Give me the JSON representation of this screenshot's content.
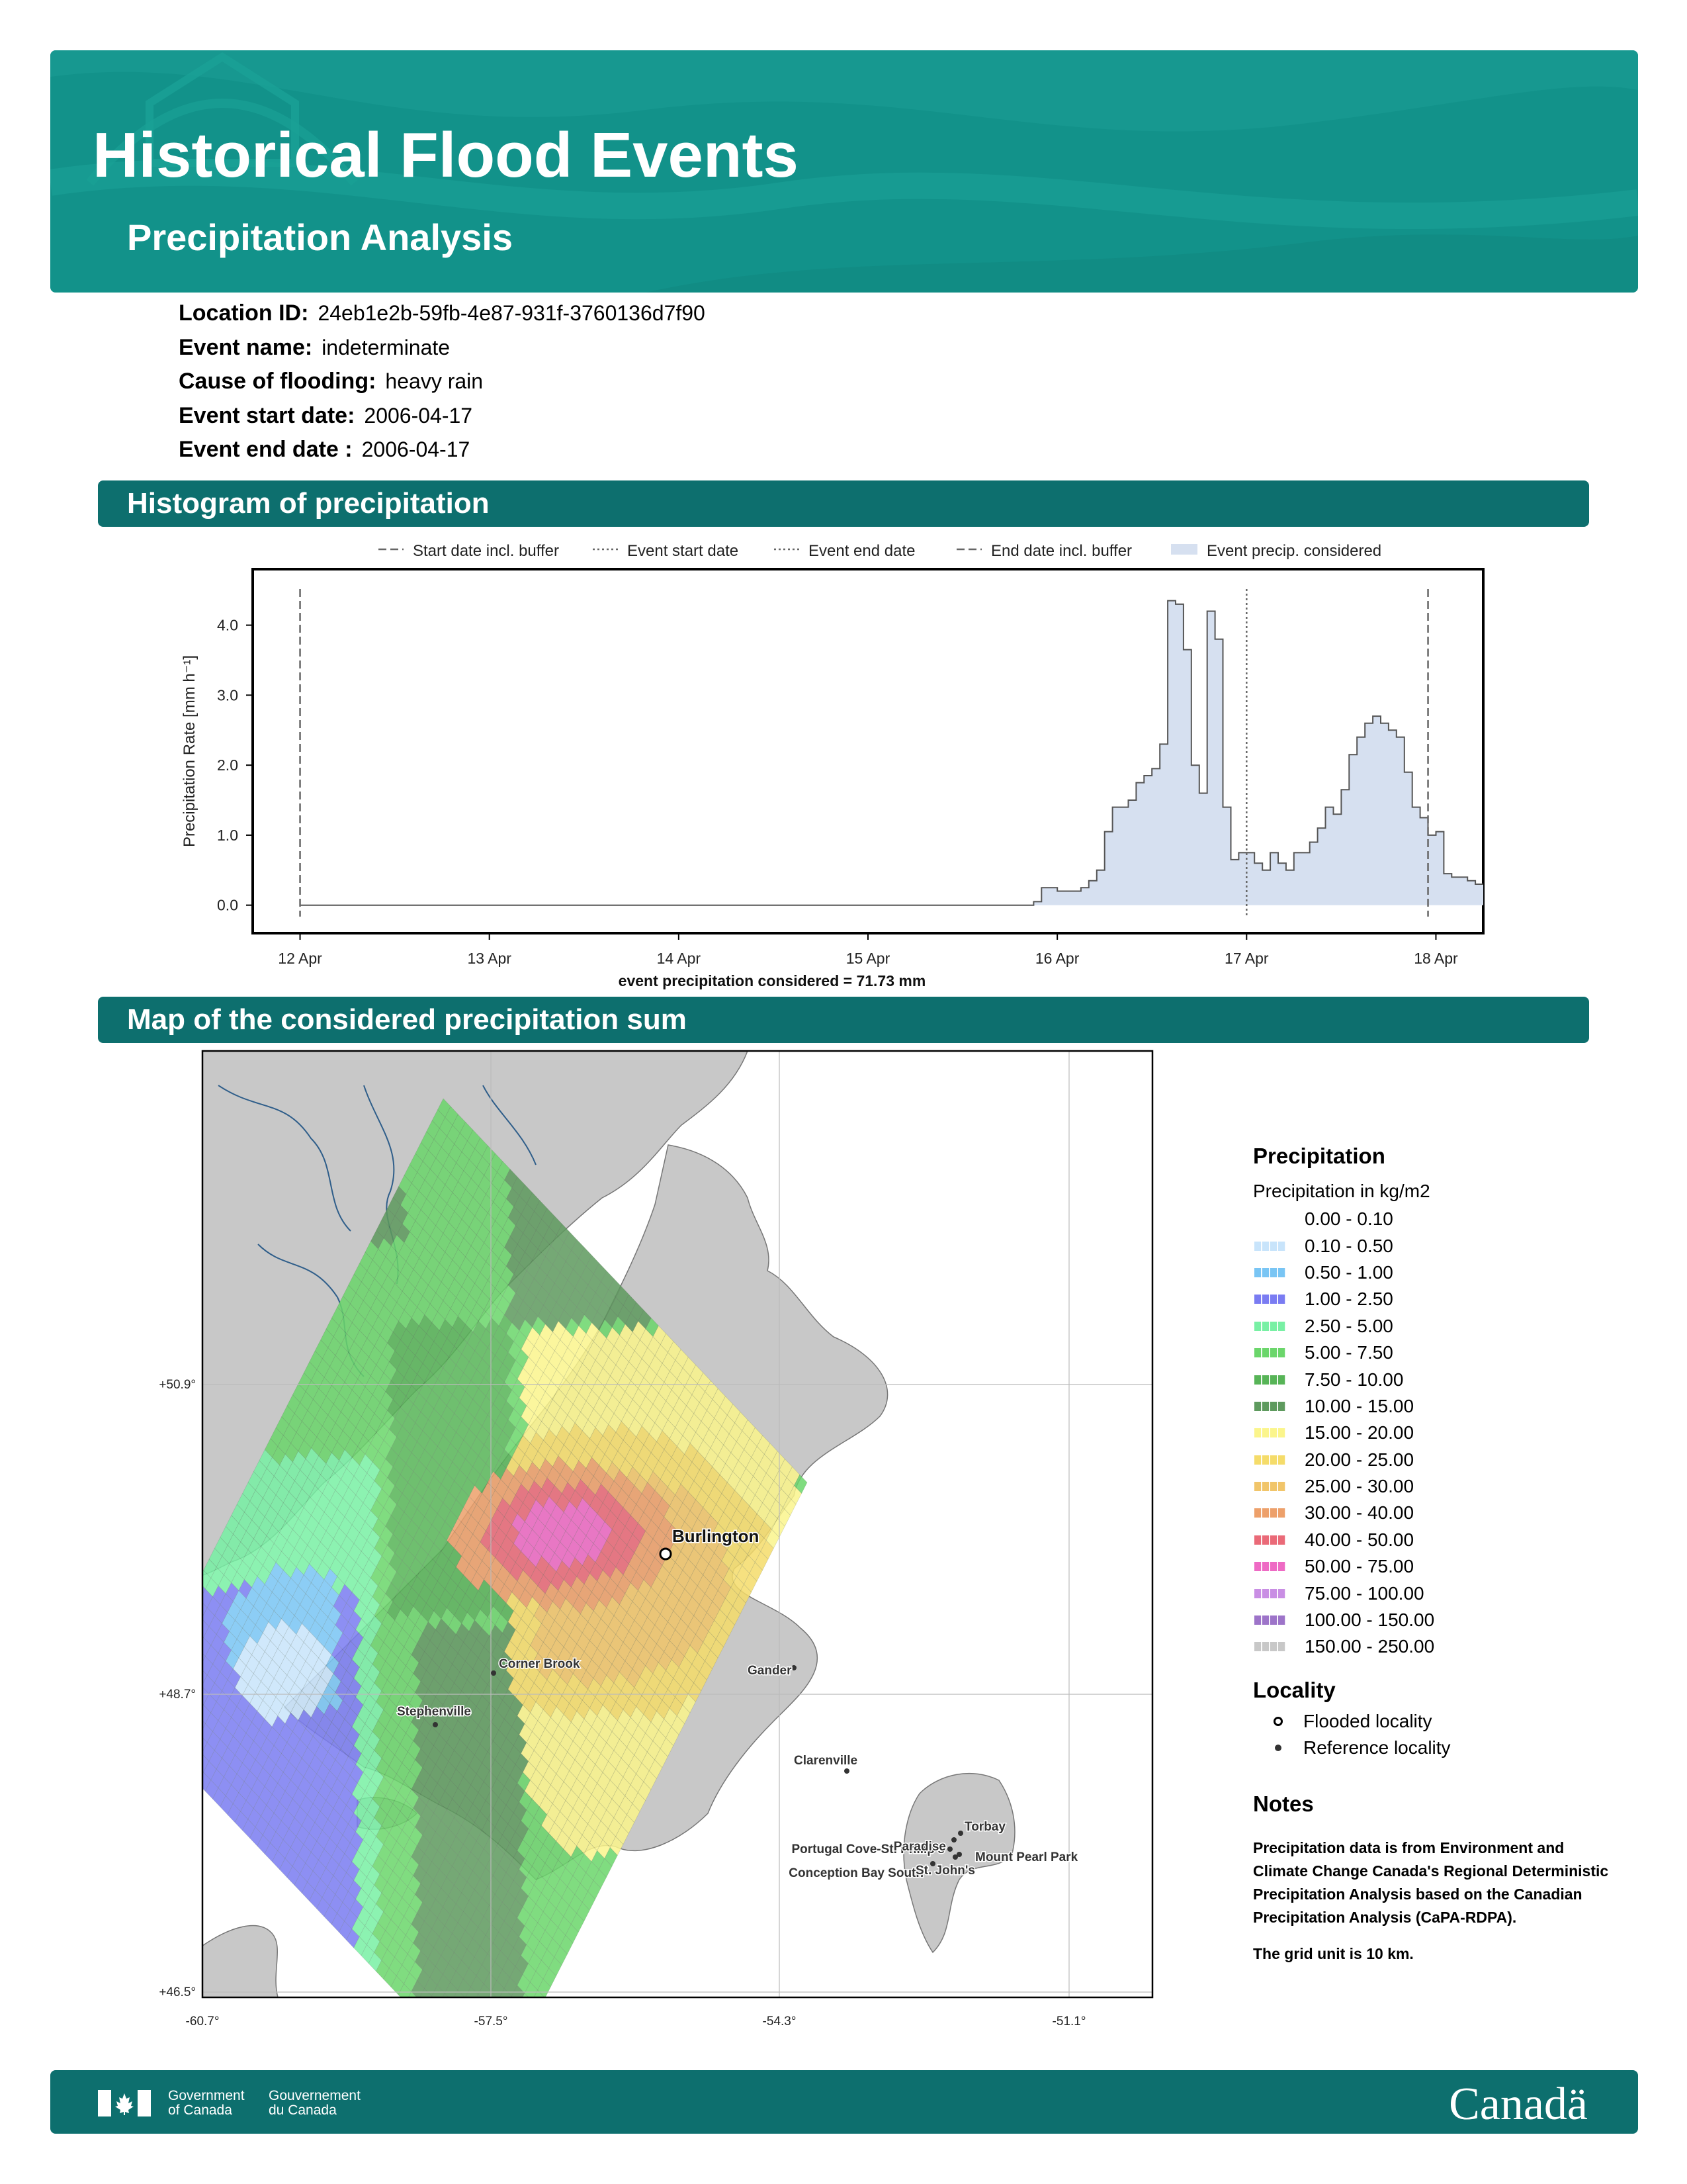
{
  "header": {
    "title": "Historical Flood Events",
    "subtitle": "Precipitation Analysis"
  },
  "meta": [
    {
      "label": "Location ID:",
      "value": "24eb1e2b-59fb-4e87-931f-3760136d7f90"
    },
    {
      "label": "Event name:",
      "value": "indeterminate"
    },
    {
      "label": "Cause of flooding:",
      "value": "heavy rain"
    },
    {
      "label": "Event start date:",
      "value": "2006-04-17"
    },
    {
      "label": "Event end date :",
      "value": "2006-04-17"
    }
  ],
  "sections": {
    "histogram": "Histogram of precipitation",
    "map": "Map of the considered precipitation sum"
  },
  "chart_data": {
    "type": "area",
    "step": true,
    "legend": [
      "Start date incl. buffer",
      "Event start date",
      "Event end date",
      "End date incl. buffer",
      "Event precip. considered"
    ],
    "legend_position": "top",
    "ylabel": "Precipitation Rate [mm h⁻¹]",
    "xlabel": "event precipitation considered = 71.73 mm",
    "x_ticks": [
      "12 Apr",
      "13 Apr",
      "14 Apr",
      "15 Apr",
      "16 Apr",
      "17 Apr",
      "18 Apr"
    ],
    "y_ticks": [
      "0.0",
      "1.0",
      "2.0",
      "3.0",
      "4.0"
    ],
    "ylim": [
      -0.4,
      4.8
    ],
    "xlim": [
      "2006-04-11 18:00",
      "2006-04-18 06:00"
    ],
    "vlines": {
      "start_buffer": "2006-04-12 00:00",
      "event_start": "2006-04-17 00:00",
      "event_end": "2006-04-17 00:00",
      "end_buffer": "2006-04-17 23:00"
    },
    "series_start": "2006-04-15 21:00",
    "step_hours": 1,
    "values": [
      0.05,
      0.25,
      0.25,
      0.2,
      0.2,
      0.2,
      0.25,
      0.35,
      0.5,
      1.05,
      1.4,
      1.4,
      1.5,
      1.75,
      1.85,
      1.95,
      2.3,
      4.35,
      4.3,
      3.65,
      2.0,
      1.6,
      4.2,
      3.8,
      1.4,
      0.65,
      0.75,
      0.75,
      0.6,
      0.5,
      0.75,
      0.6,
      0.5,
      0.75,
      0.75,
      0.9,
      1.1,
      1.4,
      1.3,
      1.65,
      2.15,
      2.4,
      2.6,
      2.7,
      2.6,
      2.5,
      2.4,
      1.9,
      1.4,
      1.25,
      1.0,
      1.05,
      0.45,
      0.4,
      0.4,
      0.35,
      0.3
    ]
  },
  "map": {
    "lon_ticks": [
      "-60.7°",
      "-57.5°",
      "-54.3°",
      "-51.1°"
    ],
    "lat_ticks": [
      "+50.9°",
      "+48.7°",
      "+46.5°"
    ],
    "flooded_locality": "Burlington",
    "reference_localities": [
      "Corner Brook",
      "Stephenville",
      "Gander",
      "Clarenville",
      "Portugal Cove-St. Philip's",
      "Conception Bay South",
      "Paradise",
      "Torbay",
      "Mount Pearl Park",
      "St. John's"
    ]
  },
  "legend": {
    "title": "Precipitation",
    "subtitle": "Precipitation in kg/m2",
    "classes": [
      {
        "label": "0.00 - 0.10",
        "color": "#ffffff"
      },
      {
        "label": "0.10 - 0.50",
        "color": "#c8e4fb"
      },
      {
        "label": "0.50 - 1.00",
        "color": "#79c5f4"
      },
      {
        "label": "1.00 - 2.50",
        "color": "#7a7cf2"
      },
      {
        "label": "2.50 - 5.00",
        "color": "#78f0a4"
      },
      {
        "label": "5.00 - 7.50",
        "color": "#6bd66b"
      },
      {
        "label": "7.50 - 10.00",
        "color": "#57b457"
      },
      {
        "label": "10.00 - 15.00",
        "color": "#5e9a5e"
      },
      {
        "label": "15.00 - 20.00",
        "color": "#fbf58c"
      },
      {
        "label": "20.00 - 25.00",
        "color": "#f5dc6a"
      },
      {
        "label": "25.00 - 30.00",
        "color": "#f1c56a"
      },
      {
        "label": "30.00 - 40.00",
        "color": "#eda06a"
      },
      {
        "label": "40.00 - 50.00",
        "color": "#ea6a78"
      },
      {
        "label": "50.00 - 75.00",
        "color": "#ee6ac4"
      },
      {
        "label": "75.00 - 100.00",
        "color": "#c98ee4"
      },
      {
        "label": "100.00 - 150.00",
        "color": "#9d74c9"
      },
      {
        "label": "150.00 - 250.00",
        "color": "#c8c8c8"
      }
    ],
    "locality_title": "Locality",
    "flooded_label": "Flooded locality",
    "reference_label": "Reference locality",
    "notes_title": "Notes",
    "notes_text": "Precipitation data is from Environment and Climate Change Canada's Regional Deterministic Precipitation Analysis based on the Canadian Precipitation Analysis (CaPA-RDPA).",
    "notes_grid": "The grid unit is 10 km."
  },
  "footer": {
    "gov_en_1": "Government",
    "gov_en_2": "of Canada",
    "gov_fr_1": "Gouvernement",
    "gov_fr_2": "du Canada",
    "wordmark": "Canadä"
  }
}
